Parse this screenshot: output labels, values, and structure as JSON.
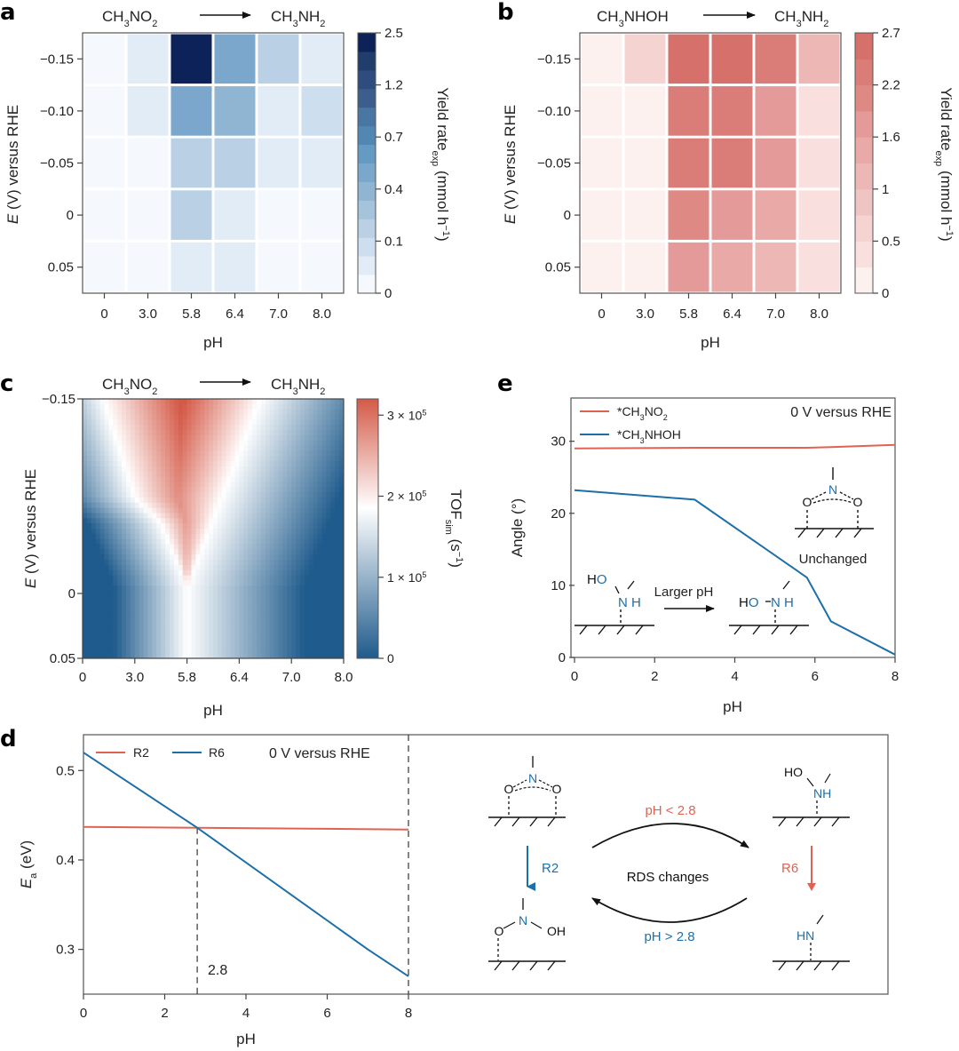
{
  "panels": {
    "a": {
      "letter": "a",
      "reactant": "CH3NO2",
      "product": "CH3NH2"
    },
    "b": {
      "letter": "b",
      "reactant": "CH3NHOH",
      "product": "CH3NH2"
    },
    "c": {
      "letter": "c",
      "reactant": "CH3NO2",
      "product": "CH3NH2"
    },
    "d": {
      "letter": "d"
    },
    "e": {
      "letter": "e"
    }
  },
  "chart_data": [
    {
      "id": "a",
      "type": "heatmap",
      "title": "CH3NO2 → CH3NH2",
      "xlabel": "pH",
      "ylabel": "E (V) versus RHE",
      "x_categories": [
        "0",
        "3.0",
        "5.8",
        "6.4",
        "7.0",
        "8.0"
      ],
      "y_categories": [
        "-0.15",
        "-0.10",
        "-0.05",
        "0",
        "0.05"
      ],
      "colorbar": {
        "label": "Yield rate_exp (mmol h^-1)",
        "ticks": [
          "0",
          "0.1",
          "0.4",
          "0.7",
          "1.2",
          "2.5"
        ],
        "levels": 14,
        "colors": [
          "#f5f9fe",
          "#e1ecf6",
          "#cddfee",
          "#bad0e4",
          "#a5c4db",
          "#8fb5d2",
          "#7aa7cb",
          "#659bc3",
          "#5286b3",
          "#4a76a3",
          "#3c5e8c",
          "#2e4c7e",
          "#213d6c",
          "#0c2259"
        ]
      },
      "values": [
        [
          0.0,
          0.3,
          2.5,
          1.2,
          0.7,
          0.3
        ],
        [
          0.0,
          0.3,
          1.2,
          0.9,
          0.3,
          0.45
        ],
        [
          0.02,
          0.0,
          0.7,
          0.6,
          0.2,
          0.2
        ],
        [
          0.02,
          0.0,
          0.7,
          0.2,
          0.1,
          0.0
        ],
        [
          0.02,
          0.0,
          0.2,
          0.2,
          0.0,
          0.0
        ]
      ]
    },
    {
      "id": "b",
      "type": "heatmap",
      "title": "CH3NHOH → CH3NH2",
      "xlabel": "pH",
      "ylabel": "E (V) versus RHE",
      "x_categories": [
        "0",
        "3.0",
        "5.8",
        "6.4",
        "7.0",
        "8.0"
      ],
      "y_categories": [
        "-0.15",
        "-0.10",
        "-0.05",
        "0",
        "0.05"
      ],
      "colorbar": {
        "label": "Yield rate_exp (mmol h^-1)",
        "ticks": [
          "0",
          "0.5",
          "1",
          "1.6",
          "2.2",
          "2.7"
        ],
        "levels": 10,
        "colors": [
          "#fdf1f0",
          "#f9e0df",
          "#f5d3d1",
          "#efc5c3",
          "#ecb7b4",
          "#e9a9a6",
          "#e49a98",
          "#df8984",
          "#da7c77",
          "#d5706a"
        ]
      },
      "values": [
        [
          0.0,
          0.6,
          2.6,
          2.6,
          2.3,
          1.1
        ],
        [
          0.0,
          0.0,
          2.3,
          2.3,
          1.7,
          0.5
        ],
        [
          0.0,
          0.0,
          2.3,
          2.3,
          1.7,
          0.5
        ],
        [
          0.0,
          0.0,
          2.0,
          1.7,
          1.4,
          0.5
        ],
        [
          0.0,
          0.0,
          1.7,
          1.4,
          1.2,
          0.5
        ]
      ]
    },
    {
      "id": "c",
      "type": "heatmap",
      "title": "CH3NO2 → CH3NH2",
      "xlabel": "pH",
      "ylabel": "E (V) versus RHE",
      "x_ticks": [
        "0",
        "3.0",
        "5.8",
        "6.4",
        "7.0",
        "8.0"
      ],
      "y_ticks": [
        "-0.15",
        "0",
        "0.05"
      ],
      "ylim": [
        -0.15,
        0.05
      ],
      "colorbar": {
        "label": "TOF_sim (s^-1)",
        "ticks": [
          "0",
          "1 × 10^5",
          "2 × 10^5",
          "3 × 10^5"
        ],
        "range": [
          0,
          320000
        ],
        "low_color": "#1f5b8c",
        "mid_color": "#ffffff",
        "high_color": "#d45a48"
      },
      "description": "Continuous V-shaped high-TOF (red) region centred near pH 3.0–5.8 at -0.15 V, narrowing toward pH 5.8 at lower overpotential; blue at pH extremes.",
      "ridge": [
        {
          "x_frac": 0.08,
          "y_frac": 0.0
        },
        {
          "x_frac": 0.2,
          "y_frac": 0.38
        },
        {
          "x_frac": 0.3,
          "y_frac": 0.48
        },
        {
          "x_frac": 0.4,
          "y_frac": 0.72
        },
        {
          "x_frac": 0.52,
          "y_frac": 0.4
        },
        {
          "x_frac": 0.68,
          "y_frac": 0.0
        }
      ]
    },
    {
      "id": "e",
      "type": "line",
      "annotation": "0 V versus RHE",
      "xlabel": "pH",
      "ylabel": "Angle (°)",
      "xlim": [
        0,
        8
      ],
      "ylim": [
        0,
        36
      ],
      "x_ticks": [
        0,
        2,
        4,
        6,
        8
      ],
      "y_ticks": [
        0,
        10,
        20,
        30
      ],
      "series": [
        {
          "name": "*CH3NO2",
          "color": "#e06352",
          "x": [
            0,
            3,
            5.8,
            6.4,
            8
          ],
          "y": [
            29.0,
            29.1,
            29.1,
            29.2,
            29.5
          ]
        },
        {
          "name": "*CH3NHOH",
          "color": "#1d6fa8",
          "x": [
            0,
            3,
            5.8,
            6.4,
            8
          ],
          "y": [
            23.2,
            21.9,
            11.1,
            5.0,
            0.4
          ]
        }
      ],
      "insets": {
        "unchanged_label": "Unchanged",
        "arrow_label": "Larger pH"
      }
    },
    {
      "id": "d",
      "type": "line",
      "annotation": "0 V versus RHE",
      "xlabel": "pH",
      "ylabel": "E_a (eV)",
      "xlim": [
        0,
        8
      ],
      "ylim": [
        0.25,
        0.54
      ],
      "x_ticks": [
        0,
        2,
        4,
        6,
        8
      ],
      "y_ticks": [
        0.3,
        0.4,
        0.5
      ],
      "vlines": [
        2.8,
        8
      ],
      "crossover_label": "2.8",
      "series": [
        {
          "name": "R2",
          "color": "#e06352",
          "x": [
            0,
            8
          ],
          "y": [
            0.437,
            0.434
          ]
        },
        {
          "name": "R6",
          "color": "#1d6fa8",
          "x": [
            0,
            2.8,
            7,
            8
          ],
          "y": [
            0.52,
            0.436,
            0.3,
            0.27
          ]
        }
      ],
      "scheme": {
        "rds_label": "RDS changes",
        "top_condition": "pH < 2.8",
        "bottom_condition": "pH > 2.8",
        "left_step": "R2",
        "right_step": "R6"
      }
    }
  ]
}
